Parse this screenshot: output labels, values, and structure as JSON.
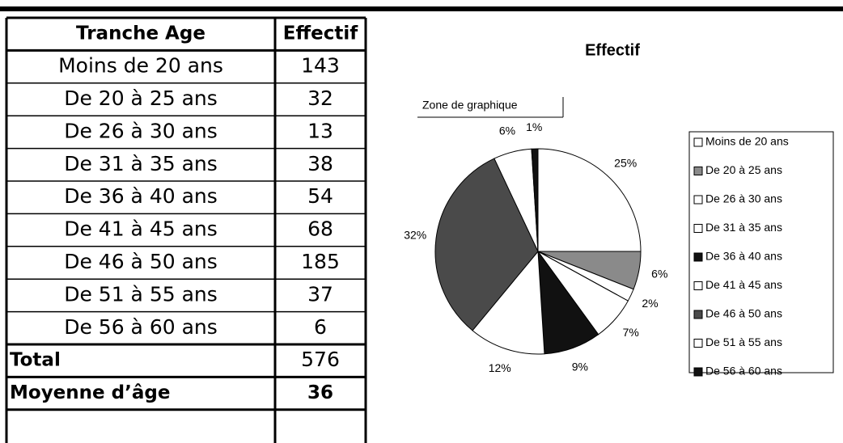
{
  "table": {
    "headers": [
      "Tranche Age",
      "Effectif"
    ],
    "rows": [
      [
        "Moins de 20 ans",
        143
      ],
      [
        "De 20 à 25 ans",
        32
      ],
      [
        "De 26 à 30 ans",
        13
      ],
      [
        "De 31 à 35 ans",
        38
      ],
      [
        "De 36 à 40 ans",
        54
      ],
      [
        "De 41 à 45 ans",
        68
      ],
      [
        "De 46 à 50 ans",
        185
      ],
      [
        "De 51 à 55 ans",
        37
      ],
      [
        "De 56 à 60 ans",
        6
      ]
    ],
    "total": [
      "Total",
      576
    ],
    "average": [
      "Moyenne d’âge",
      36
    ]
  },
  "chart_data": {
    "type": "pie",
    "title": "Effectif",
    "annotations": [
      "Zone de graphique"
    ],
    "categories": [
      "Moins de 20 ans",
      "De 20 à 25 ans",
      "De 26 à 30 ans",
      "De 31 à 35 ans",
      "De 36 à 40 ans",
      "De 41 à 45 ans",
      "De 46 à 50 ans",
      "De 51 à 55 ans",
      "De 56 à 60 ans"
    ],
    "values": [
      25,
      6,
      2,
      7,
      9,
      12,
      32,
      6,
      1
    ],
    "value_labels": [
      "25%",
      "6%",
      "2%",
      "7%",
      "9%",
      "12%",
      "32%",
      "6%",
      "1%"
    ],
    "colors": [
      "#ffffff",
      "#8a8a8a",
      "#ffffff",
      "#ffffff",
      "#111111",
      "#ffffff",
      "#4a4a4a",
      "#ffffff",
      "#111111"
    ],
    "legend": "right"
  }
}
